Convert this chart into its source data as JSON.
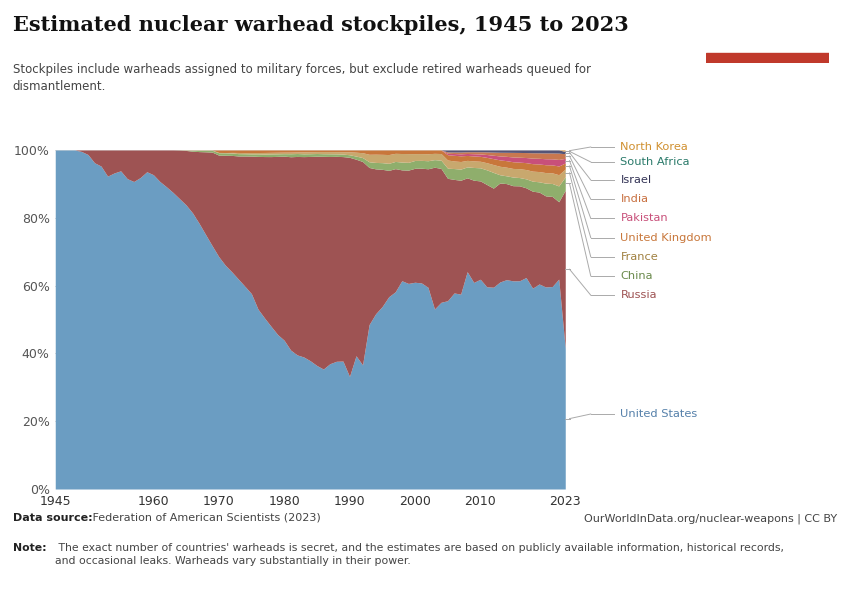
{
  "title": "Estimated nuclear warhead stockpiles, 1945 to 2023",
  "subtitle": "Stockpiles include warheads assigned to military forces, but exclude retired warheads queued for\ndismantlement.",
  "datasource_bold": "Data source:",
  "datasource_normal": " Federation of American Scientists (2023)",
  "note_bold": "Note:",
  "note_normal": " The exact number of countries' warheads is secret, and the estimates are based on publicly available information, historical records,\nand occasional leaks. Warheads vary substantially in their power.",
  "url": "OurWorldInData.org/nuclear-weapons | CC BY",
  "years": [
    1945,
    1946,
    1947,
    1948,
    1949,
    1950,
    1951,
    1952,
    1953,
    1954,
    1955,
    1956,
    1957,
    1958,
    1959,
    1960,
    1961,
    1962,
    1963,
    1964,
    1965,
    1966,
    1967,
    1968,
    1969,
    1970,
    1971,
    1972,
    1973,
    1974,
    1975,
    1976,
    1977,
    1978,
    1979,
    1980,
    1981,
    1982,
    1983,
    1984,
    1985,
    1986,
    1987,
    1988,
    1989,
    1990,
    1991,
    1992,
    1993,
    1994,
    1995,
    1996,
    1997,
    1998,
    1999,
    2000,
    2001,
    2002,
    2003,
    2004,
    2005,
    2006,
    2007,
    2008,
    2009,
    2010,
    2011,
    2012,
    2013,
    2014,
    2015,
    2016,
    2017,
    2018,
    2019,
    2020,
    2021,
    2022,
    2023
  ],
  "stack_order": [
    "United States",
    "Russia",
    "China",
    "France",
    "United Kingdom",
    "Pakistan",
    "India",
    "Israel",
    "South Africa",
    "North Korea"
  ],
  "legend_order": [
    "North Korea",
    "South Africa",
    "Israel",
    "India",
    "Pakistan",
    "United Kingdom",
    "France",
    "China",
    "Russia",
    "United States"
  ],
  "colors": {
    "United States": "#6b9dc2",
    "Russia": "#9e5353",
    "China": "#8fae6c",
    "France": "#c8a86e",
    "United Kingdom": "#c8773b",
    "Pakistan": "#c8507a",
    "India": "#c87850",
    "Israel": "#555577",
    "South Africa": "#3a8a7a",
    "North Korea": "#e8a040"
  },
  "label_colors": {
    "United States": "#5580aa",
    "Russia": "#9e5353",
    "China": "#6a8a4c",
    "France": "#a08040",
    "United Kingdom": "#c8773b",
    "Pakistan": "#c8507a",
    "India": "#c87040",
    "Israel": "#333355",
    "South Africa": "#2a7a6a",
    "North Korea": "#d09030"
  },
  "data": {
    "United States": [
      6,
      11,
      32,
      110,
      235,
      369,
      640,
      1005,
      1436,
      2063,
      3057,
      4618,
      6444,
      9822,
      15468,
      20434,
      24111,
      27297,
      29640,
      31255,
      31982,
      31700,
      30893,
      28884,
      27374,
      26662,
      26660,
      27000,
      27135,
      27052,
      27052,
      25000,
      24424,
      24343,
      24243,
      24304,
      23031,
      22937,
      23590,
      23490,
      23135,
      22966,
      23490,
      23434,
      22217,
      19008,
      18306,
      13731,
      11511,
      10886,
      10953,
      10952,
      10952,
      10952,
      10577,
      10577,
      10577,
      10027,
      9962,
      9762,
      8000,
      7770,
      7700,
      9960,
      9400,
      9600,
      8500,
      7700,
      7315,
      7260,
      7000,
      6800,
      6600,
      5800,
      5800,
      5550,
      5500,
      5428,
      5244
    ],
    "Russia": [
      0,
      0,
      0,
      0,
      1,
      5,
      25,
      50,
      120,
      150,
      200,
      426,
      660,
      869,
      1060,
      1605,
      2471,
      3322,
      4238,
      5221,
      6129,
      7089,
      8339,
      9399,
      10538,
      11643,
      13092,
      14478,
      15915,
      17385,
      19055,
      21205,
      23044,
      25393,
      27935,
      30062,
      32049,
      33952,
      35804,
      37431,
      39197,
      40723,
      38859,
      37600,
      35505,
      37000,
      27000,
      22500,
      11000,
      9000,
      8232,
      7200,
      6840,
      5830,
      5830,
      5830,
      5890,
      5888,
      7850,
      7000,
      5200,
      4500,
      4500,
      4300,
      4650,
      4500,
      4300,
      3780,
      3500,
      3331,
      3200,
      3100,
      2800,
      2800,
      2600,
      2500,
      2450,
      2000,
      5889
    ],
    "China": [
      0,
      0,
      0,
      0,
      0,
      0,
      0,
      0,
      0,
      0,
      0,
      0,
      0,
      0,
      0,
      0,
      0,
      0,
      0,
      10,
      15,
      100,
      150,
      170,
      200,
      270,
      290,
      300,
      300,
      300,
      300,
      350,
      350,
      400,
      400,
      400,
      500,
      500,
      500,
      500,
      500,
      500,
      500,
      450,
      435,
      430,
      430,
      435,
      400,
      400,
      400,
      400,
      400,
      410,
      400,
      400,
      400,
      400,
      420,
      430,
      430,
      430,
      440,
      500,
      580,
      600,
      616,
      600,
      290,
      270,
      290,
      270,
      280,
      290,
      290,
      350,
      350,
      410,
      500
    ],
    "France": [
      0,
      0,
      0,
      0,
      0,
      0,
      0,
      0,
      0,
      0,
      0,
      0,
      0,
      0,
      0,
      0,
      0,
      0,
      0,
      5,
      36,
      36,
      36,
      36,
      36,
      36,
      36,
      70,
      150,
      150,
      188,
      188,
      235,
      235,
      250,
      250,
      268,
      268,
      355,
      360,
      360,
      411,
      411,
      411,
      411,
      505,
      538,
      538,
      524,
      512,
      500,
      500,
      450,
      450,
      450,
      350,
      348,
      348,
      348,
      348,
      348,
      300,
      300,
      300,
      300,
      300,
      300,
      300,
      300,
      300,
      290,
      290,
      290,
      290,
      290,
      290,
      290,
      290,
      290
    ],
    "United Kingdom": [
      0,
      0,
      0,
      0,
      0,
      0,
      0,
      0,
      0,
      0,
      0,
      0,
      0,
      0,
      0,
      0,
      0,
      0,
      0,
      0,
      0,
      0,
      0,
      0,
      0,
      280,
      300,
      300,
      320,
      347,
      350,
      350,
      350,
      350,
      350,
      350,
      350,
      335,
      325,
      320,
      300,
      300,
      300,
      300,
      300,
      300,
      300,
      300,
      300,
      260,
      260,
      260,
      185,
      185,
      185,
      185,
      185,
      185,
      185,
      185,
      225,
      225,
      225,
      225,
      225,
      225,
      225,
      225,
      225,
      225,
      225,
      215,
      215,
      215,
      215,
      215,
      215,
      225,
      225
    ],
    "Pakistan": [
      0,
      0,
      0,
      0,
      0,
      0,
      0,
      0,
      0,
      0,
      0,
      0,
      0,
      0,
      0,
      0,
      0,
      0,
      0,
      0,
      0,
      0,
      0,
      0,
      0,
      0,
      0,
      0,
      0,
      0,
      0,
      0,
      0,
      0,
      0,
      0,
      0,
      0,
      0,
      0,
      0,
      0,
      0,
      0,
      0,
      0,
      0,
      0,
      0,
      0,
      0,
      0,
      0,
      0,
      0,
      0,
      0,
      0,
      0,
      0,
      60,
      70,
      80,
      90,
      100,
      110,
      120,
      130,
      140,
      150,
      160,
      160,
      160,
      160,
      160,
      165,
      165,
      170,
      170
    ],
    "India": [
      0,
      0,
      0,
      0,
      0,
      0,
      0,
      0,
      0,
      0,
      0,
      0,
      0,
      0,
      0,
      0,
      0,
      0,
      0,
      0,
      0,
      0,
      0,
      0,
      0,
      0,
      0,
      0,
      0,
      0,
      0,
      0,
      0,
      0,
      0,
      0,
      0,
      0,
      0,
      0,
      0,
      0,
      0,
      0,
      0,
      0,
      0,
      0,
      0,
      0,
      0,
      0,
      0,
      0,
      0,
      0,
      0,
      0,
      0,
      0,
      60,
      60,
      70,
      80,
      90,
      100,
      110,
      120,
      130,
      140,
      155,
      155,
      155,
      155,
      155,
      160,
      160,
      164,
      172
    ],
    "Israel": [
      0,
      0,
      0,
      0,
      0,
      0,
      0,
      0,
      0,
      0,
      0,
      0,
      0,
      0,
      0,
      0,
      0,
      0,
      0,
      0,
      0,
      0,
      0,
      0,
      0,
      0,
      0,
      0,
      0,
      0,
      0,
      0,
      0,
      0,
      0,
      0,
      0,
      0,
      0,
      0,
      0,
      0,
      0,
      0,
      0,
      0,
      0,
      0,
      0,
      0,
      0,
      0,
      0,
      0,
      0,
      0,
      0,
      0,
      0,
      0,
      80,
      80,
      80,
      80,
      80,
      80,
      80,
      80,
      80,
      80,
      80,
      80,
      80,
      80,
      80,
      80,
      80,
      80,
      90
    ],
    "South Africa": [
      0,
      0,
      0,
      0,
      0,
      0,
      0,
      0,
      0,
      0,
      0,
      0,
      0,
      0,
      0,
      0,
      0,
      0,
      0,
      0,
      0,
      0,
      0,
      0,
      0,
      0,
      0,
      0,
      0,
      0,
      0,
      0,
      0,
      0,
      0,
      0,
      0,
      0,
      0,
      0,
      0,
      0,
      0,
      0,
      0,
      0,
      0,
      0,
      0,
      0,
      0,
      0,
      0,
      0,
      0,
      0,
      0,
      0,
      0,
      0,
      0,
      0,
      0,
      0,
      0,
      0,
      0,
      0,
      0,
      0,
      0,
      0,
      0,
      0,
      0,
      0,
      0,
      0,
      0
    ],
    "North Korea": [
      0,
      0,
      0,
      0,
      0,
      0,
      0,
      0,
      0,
      0,
      0,
      0,
      0,
      0,
      0,
      0,
      0,
      0,
      0,
      0,
      0,
      0,
      0,
      0,
      0,
      0,
      0,
      0,
      0,
      0,
      0,
      0,
      0,
      0,
      0,
      0,
      0,
      0,
      0,
      0,
      0,
      0,
      0,
      0,
      0,
      0,
      0,
      0,
      0,
      0,
      0,
      0,
      0,
      0,
      0,
      0,
      0,
      0,
      0,
      0,
      0,
      0,
      0,
      0,
      0,
      0,
      0,
      0,
      0,
      0,
      0,
      0,
      0,
      0,
      0,
      0,
      0,
      0,
      50
    ]
  },
  "background_color": "#ffffff"
}
